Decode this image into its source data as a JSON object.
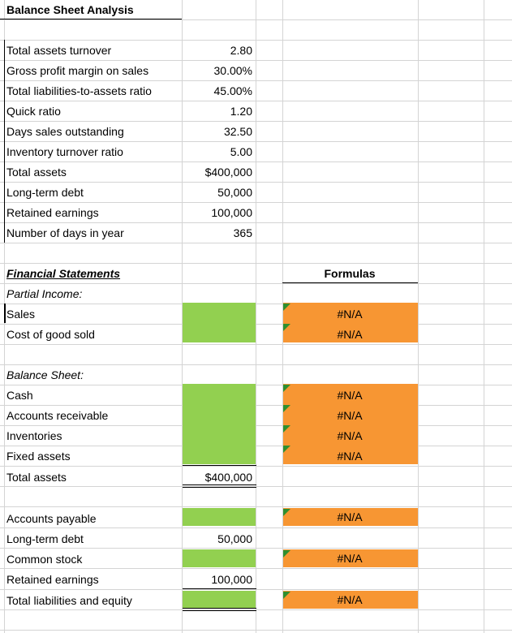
{
  "title": "Balance Sheet Analysis",
  "inputs": [
    {
      "label": "Total assets turnover",
      "value": "2.80"
    },
    {
      "label": "Gross profit margin on sales",
      "value": "30.00%"
    },
    {
      "label": "Total liabilities-to-assets ratio",
      "value": "45.00%"
    },
    {
      "label": "Quick ratio",
      "value": "1.20"
    },
    {
      "label": "Days sales outstanding",
      "value": "32.50"
    },
    {
      "label": "Inventory turnover ratio",
      "value": "5.00"
    },
    {
      "label": "Total assets",
      "value": "$400,000"
    },
    {
      "label": "Long-term debt",
      "value": "50,000"
    },
    {
      "label": "Retained earnings",
      "value": "100,000"
    },
    {
      "label": "Number of days in year",
      "value": "365"
    }
  ],
  "financial_statements": {
    "heading": "Financial Statements",
    "formulas_heading": "Formulas",
    "partial_income": {
      "heading": "Partial Income:",
      "rows": [
        {
          "label": "Sales",
          "formula": "#N/A"
        },
        {
          "label": "Cost of good sold",
          "formula": "#N/A"
        }
      ]
    },
    "balance_sheet": {
      "heading": "Balance Sheet:",
      "assets": [
        {
          "label": "Cash",
          "formula": "#N/A"
        },
        {
          "label": "Accounts receivable",
          "formula": "#N/A"
        },
        {
          "label": "Inventories",
          "formula": "#N/A"
        },
        {
          "label": "Fixed assets",
          "formula": "#N/A"
        }
      ],
      "total_assets": {
        "label": "Total assets",
        "value": "$400,000"
      },
      "liabilities": [
        {
          "label": "Accounts payable",
          "value": "",
          "formula": "#N/A"
        },
        {
          "label": "Long-term debt",
          "value": "50,000",
          "formula": ""
        },
        {
          "label": "Common stock",
          "value": "",
          "formula": "#N/A"
        },
        {
          "label": "Retained earnings",
          "value": "100,000",
          "formula": ""
        },
        {
          "label": "Total liabilities and equity",
          "value": "",
          "formula": "#N/A"
        }
      ]
    }
  },
  "colors": {
    "input_cell": "#92d050",
    "formula_cell": "#f79633",
    "gridline": "#d4d4d4",
    "error_indicator": "#2f8f2f"
  }
}
